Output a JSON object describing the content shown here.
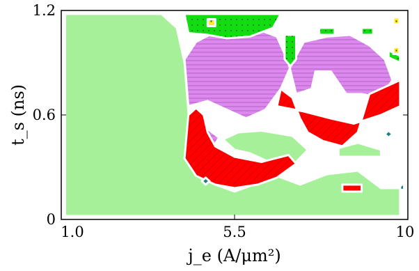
{
  "chart_data": {
    "type": "heatmap",
    "title": "",
    "xlabel": "j_e (A/μm²)",
    "ylabel": "t_s (ns)",
    "xlim": [
      1.0,
      10
    ],
    "ylim": [
      0,
      1.2
    ],
    "x_ticks": [
      "1.0",
      "5.5",
      "10"
    ],
    "y_ticks": [
      "0",
      "0.6",
      "1.2"
    ],
    "grid": false,
    "legend": "none",
    "regions": [
      {
        "name": "light-green",
        "color": "#a6f09a",
        "pattern": "solid"
      },
      {
        "name": "red",
        "color": "#ff0000",
        "pattern": "diagonal-hatch"
      },
      {
        "name": "violet",
        "color": "#dd88ee",
        "pattern": "horizontal-lines"
      },
      {
        "name": "green",
        "color": "#11dd11",
        "pattern": "dots"
      },
      {
        "name": "yellow",
        "color": "#ffee22",
        "pattern": "stars"
      },
      {
        "name": "teal",
        "color": "#1f7f7f",
        "pattern": "solid"
      }
    ],
    "polygons": {
      "light_green": [
        [
          [
            1.1,
            0.02
          ],
          [
            9.8,
            0.02
          ],
          [
            9.8,
            0.18
          ],
          [
            9.3,
            0.18
          ],
          [
            8.7,
            0.28
          ],
          [
            7.9,
            0.26
          ],
          [
            7.2,
            0.2
          ],
          [
            6.6,
            0.25
          ],
          [
            6.0,
            0.2
          ],
          [
            5.5,
            0.16
          ],
          [
            5.0,
            0.2
          ],
          [
            4.6,
            0.28
          ],
          [
            4.4,
            0.45
          ],
          [
            4.3,
            0.62
          ],
          [
            4.2,
            0.9
          ],
          [
            4.0,
            1.1
          ],
          [
            3.6,
            1.18
          ],
          [
            1.1,
            1.18
          ]
        ],
        [
          [
            5.2,
            0.46
          ],
          [
            5.6,
            0.5
          ],
          [
            6.2,
            0.51
          ],
          [
            7.0,
            0.48
          ],
          [
            7.4,
            0.4
          ],
          [
            7.1,
            0.33
          ],
          [
            6.4,
            0.33
          ],
          [
            5.9,
            0.38
          ],
          [
            5.5,
            0.4
          ]
        ],
        [
          [
            8.2,
            0.36
          ],
          [
            9.3,
            0.36
          ],
          [
            9.3,
            0.4
          ],
          [
            8.7,
            0.44
          ],
          [
            8.2,
            0.41
          ]
        ]
      ],
      "red": [
        [
          [
            4.2,
            0.35
          ],
          [
            4.5,
            0.25
          ],
          [
            5.0,
            0.2
          ],
          [
            5.5,
            0.18
          ],
          [
            6.1,
            0.2
          ],
          [
            6.6,
            0.24
          ],
          [
            7.1,
            0.32
          ],
          [
            6.9,
            0.37
          ],
          [
            6.2,
            0.33
          ],
          [
            5.5,
            0.36
          ],
          [
            5.0,
            0.42
          ],
          [
            4.8,
            0.5
          ],
          [
            4.7,
            0.6
          ],
          [
            4.5,
            0.64
          ],
          [
            4.3,
            0.6
          ]
        ],
        [
          [
            6.6,
            0.65
          ],
          [
            7.3,
            0.62
          ],
          [
            8.0,
            0.58
          ],
          [
            8.6,
            0.55
          ],
          [
            9.3,
            0.6
          ],
          [
            9.8,
            0.65
          ],
          [
            9.8,
            0.8
          ],
          [
            9.4,
            0.76
          ],
          [
            9.0,
            0.72
          ],
          [
            8.7,
            0.5
          ],
          [
            8.3,
            0.42
          ],
          [
            7.8,
            0.45
          ],
          [
            7.4,
            0.5
          ],
          [
            7.2,
            0.58
          ],
          [
            7.0,
            0.7
          ],
          [
            6.7,
            0.75
          ]
        ],
        [
          [
            8.3,
            0.16
          ],
          [
            8.8,
            0.16
          ],
          [
            8.8,
            0.2
          ],
          [
            8.3,
            0.2
          ]
        ]
      ],
      "violet": [
        [
          [
            4.3,
            0.65
          ],
          [
            4.8,
            0.68
          ],
          [
            5.4,
            0.62
          ],
          [
            5.8,
            0.58
          ],
          [
            6.3,
            0.63
          ],
          [
            6.7,
            0.75
          ],
          [
            7.0,
            0.9
          ],
          [
            7.3,
            1.02
          ],
          [
            7.9,
            1.05
          ],
          [
            8.5,
            1.06
          ],
          [
            9.0,
            1.0
          ],
          [
            9.4,
            0.92
          ],
          [
            9.6,
            0.8
          ],
          [
            9.3,
            0.7
          ],
          [
            8.8,
            0.72
          ],
          [
            8.4,
            0.72
          ],
          [
            8.0,
            0.85
          ],
          [
            7.6,
            0.85
          ],
          [
            7.5,
            0.75
          ],
          [
            7.1,
            0.72
          ],
          [
            6.9,
            0.9
          ],
          [
            6.6,
            1.05
          ],
          [
            6.0,
            1.1
          ],
          [
            5.2,
            1.1
          ],
          [
            4.5,
            1.02
          ],
          [
            4.2,
            0.92
          ]
        ],
        [
          [
            4.5,
            0.45
          ],
          [
            4.9,
            0.4
          ],
          [
            5.1,
            0.47
          ],
          [
            4.8,
            0.52
          ]
        ]
      ],
      "green": [
        [
          [
            4.2,
            1.18
          ],
          [
            6.7,
            1.18
          ],
          [
            6.5,
            1.1
          ],
          [
            5.9,
            1.05
          ],
          [
            5.3,
            1.04
          ],
          [
            4.8,
            1.06
          ],
          [
            4.3,
            1.07
          ]
        ],
        [
          [
            6.8,
            1.06
          ],
          [
            7.1,
            1.06
          ],
          [
            7.1,
            0.92
          ],
          [
            6.95,
            0.88
          ],
          [
            6.8,
            0.92
          ]
        ],
        [
          [
            7.7,
            1.1
          ],
          [
            8.1,
            1.1
          ],
          [
            8.1,
            1.06
          ],
          [
            7.7,
            1.06
          ]
        ],
        [
          [
            8.8,
            1.1
          ],
          [
            9.1,
            1.1
          ],
          [
            9.1,
            1.06
          ],
          [
            8.8,
            1.06
          ]
        ],
        [
          [
            9.5,
            0.97
          ],
          [
            9.8,
            0.94
          ],
          [
            9.8,
            0.9
          ],
          [
            9.5,
            0.93
          ]
        ]
      ],
      "yellow": [
        [
          [
            4.8,
            1.15
          ],
          [
            5.0,
            1.15
          ],
          [
            5.0,
            1.11
          ],
          [
            4.8,
            1.11
          ]
        ],
        [
          [
            9.62,
            1.16
          ],
          [
            9.78,
            1.16
          ],
          [
            9.78,
            1.12
          ],
          [
            9.62,
            1.12
          ]
        ],
        [
          [
            9.62,
            0.99
          ],
          [
            9.78,
            0.99
          ],
          [
            9.78,
            0.95
          ],
          [
            9.62,
            0.95
          ]
        ]
      ],
      "teal": [
        [
          [
            4.65,
            0.22
          ],
          [
            4.75,
            0.24
          ],
          [
            4.85,
            0.22
          ],
          [
            4.75,
            0.2
          ]
        ],
        [
          [
            9.4,
            0.49
          ],
          [
            9.5,
            0.51
          ],
          [
            9.6,
            0.49
          ],
          [
            9.5,
            0.47
          ]
        ],
        [
          [
            9.8,
            0.19
          ],
          [
            9.9,
            0.21
          ],
          [
            9.9,
            0.17
          ],
          [
            9.8,
            0.17
          ]
        ]
      ]
    }
  }
}
